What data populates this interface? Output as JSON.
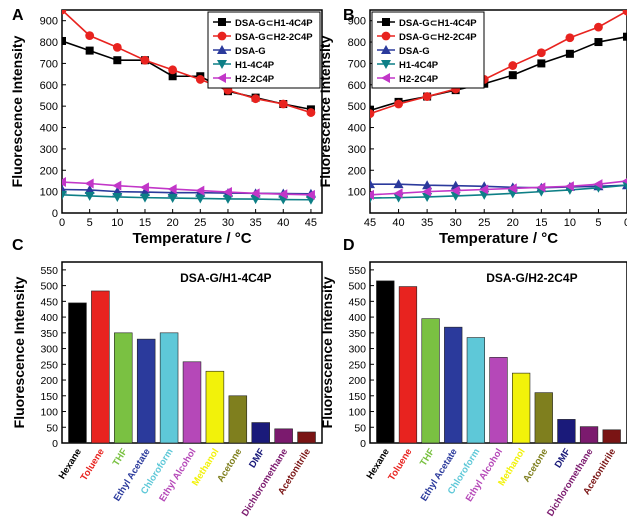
{
  "panel_letters": [
    "A",
    "B",
    "C",
    "D"
  ],
  "chart_data": [
    {
      "panel": "A",
      "type": "line",
      "xlabel": "Temperature / °C",
      "ylabel": "Fluorescence Intensity",
      "xlim": [
        0,
        47
      ],
      "ylim": [
        0,
        950
      ],
      "x_ticks": [
        0,
        5,
        10,
        15,
        20,
        25,
        30,
        35,
        40,
        45
      ],
      "y_ticks": [
        0,
        100,
        200,
        300,
        400,
        500,
        600,
        700,
        800,
        900
      ],
      "x": [
        0,
        5,
        10,
        15,
        20,
        25,
        30,
        35,
        40,
        45
      ],
      "legend_position": "top-right",
      "series": [
        {
          "name": "DSA-G⊂H1-4C4P",
          "color": "#000000",
          "marker": "square",
          "values": [
            805,
            760,
            715,
            715,
            640,
            640,
            570,
            540,
            510,
            485
          ]
        },
        {
          "name": "DSA-G⊂H2-2C4P",
          "color": "#e8231f",
          "marker": "circle",
          "values": [
            950,
            830,
            775,
            715,
            670,
            625,
            575,
            535,
            510,
            470
          ]
        },
        {
          "name": "DSA-G",
          "color": "#2b3a9c",
          "marker": "triangle-up",
          "values": [
            110,
            108,
            100,
            98,
            95,
            95,
            93,
            92,
            91,
            90
          ]
        },
        {
          "name": "H1-4C4P",
          "color": "#0d7f86",
          "marker": "triangle-down",
          "values": [
            85,
            80,
            75,
            72,
            70,
            68,
            66,
            65,
            63,
            62
          ]
        },
        {
          "name": "H2-2C4P",
          "color": "#c236c8",
          "marker": "triangle-left",
          "values": [
            145,
            138,
            128,
            120,
            112,
            105,
            98,
            92,
            88,
            85
          ]
        }
      ]
    },
    {
      "panel": "B",
      "type": "line",
      "xlabel": "Temperature / °C",
      "ylabel": "Fluorescence Intensity",
      "xlim": [
        45,
        0
      ],
      "ylim": [
        0,
        950
      ],
      "x_ticks": [
        45,
        40,
        35,
        30,
        25,
        20,
        15,
        10,
        5,
        0
      ],
      "y_ticks": [
        100,
        200,
        300,
        400,
        500,
        600,
        700,
        800,
        900
      ],
      "x": [
        45,
        40,
        35,
        30,
        25,
        20,
        15,
        10,
        5,
        0
      ],
      "legend_position": "top-left",
      "series": [
        {
          "name": "DSA-G⊂H1-4C4P",
          "color": "#000000",
          "marker": "square",
          "values": [
            480,
            520,
            545,
            575,
            605,
            645,
            700,
            745,
            800,
            825
          ]
        },
        {
          "name": "DSA-G⊂H2-2C4P",
          "color": "#e8231f",
          "marker": "circle",
          "values": [
            465,
            510,
            545,
            580,
            625,
            690,
            750,
            820,
            870,
            945
          ]
        },
        {
          "name": "DSA-G",
          "color": "#2b3a9c",
          "marker": "triangle-up",
          "values": [
            135,
            135,
            130,
            128,
            125,
            120,
            118,
            122,
            125,
            130
          ]
        },
        {
          "name": "H1-4C4P",
          "color": "#0d7f86",
          "marker": "triangle-down",
          "values": [
            70,
            72,
            75,
            80,
            85,
            92,
            100,
            108,
            118,
            130
          ]
        },
        {
          "name": "H2-2C4P",
          "color": "#c236c8",
          "marker": "triangle-left",
          "values": [
            85,
            92,
            100,
            105,
            110,
            115,
            120,
            125,
            135,
            150
          ]
        }
      ]
    },
    {
      "panel": "C",
      "type": "bar",
      "title": "DSA-G/H1-4C4P",
      "ylabel": "Fluorescence Intensity",
      "ylim": [
        0,
        575
      ],
      "y_ticks": [
        0,
        50,
        100,
        150,
        200,
        250,
        300,
        350,
        400,
        450,
        500,
        550
      ],
      "categories": [
        "Hexane",
        "Toluene",
        "THF",
        "Ethyl Acetate",
        "Chloroform",
        "Ethyl Alcohol",
        "Methanol",
        "Acetone",
        "DMF",
        "Dichloromethane",
        "Acetonitrile"
      ],
      "values": [
        445,
        483,
        350,
        330,
        350,
        258,
        228,
        150,
        65,
        45,
        35
      ],
      "colors": [
        "#000000",
        "#e8231f",
        "#7ac142",
        "#2b3a9c",
        "#5ec8d8",
        "#b548b8",
        "#f2f20a",
        "#7f7f1e",
        "#1a1a7a",
        "#7b1a6e",
        "#7a1414"
      ]
    },
    {
      "panel": "D",
      "type": "bar",
      "title": "DSA-G/H2-2C4P",
      "ylabel": "Fluorescence Intensity",
      "ylim": [
        0,
        575
      ],
      "y_ticks": [
        0,
        50,
        100,
        150,
        200,
        250,
        300,
        350,
        400,
        450,
        500,
        550
      ],
      "categories": [
        "Hexane",
        "Toluene",
        "THF",
        "Ethyl Acetate",
        "Chloroform",
        "Ethyl Alcohol",
        "Methanol",
        "Acetone",
        "DMF",
        "Dichloromethane",
        "Acetonitrile"
      ],
      "values": [
        515,
        497,
        395,
        368,
        335,
        272,
        222,
        160,
        75,
        52,
        42
      ],
      "colors": [
        "#000000",
        "#e8231f",
        "#7ac142",
        "#2b3a9c",
        "#5ec8d8",
        "#b548b8",
        "#f2f20a",
        "#7f7f1e",
        "#1a1a7a",
        "#7b1a6e",
        "#7a1414"
      ]
    }
  ]
}
